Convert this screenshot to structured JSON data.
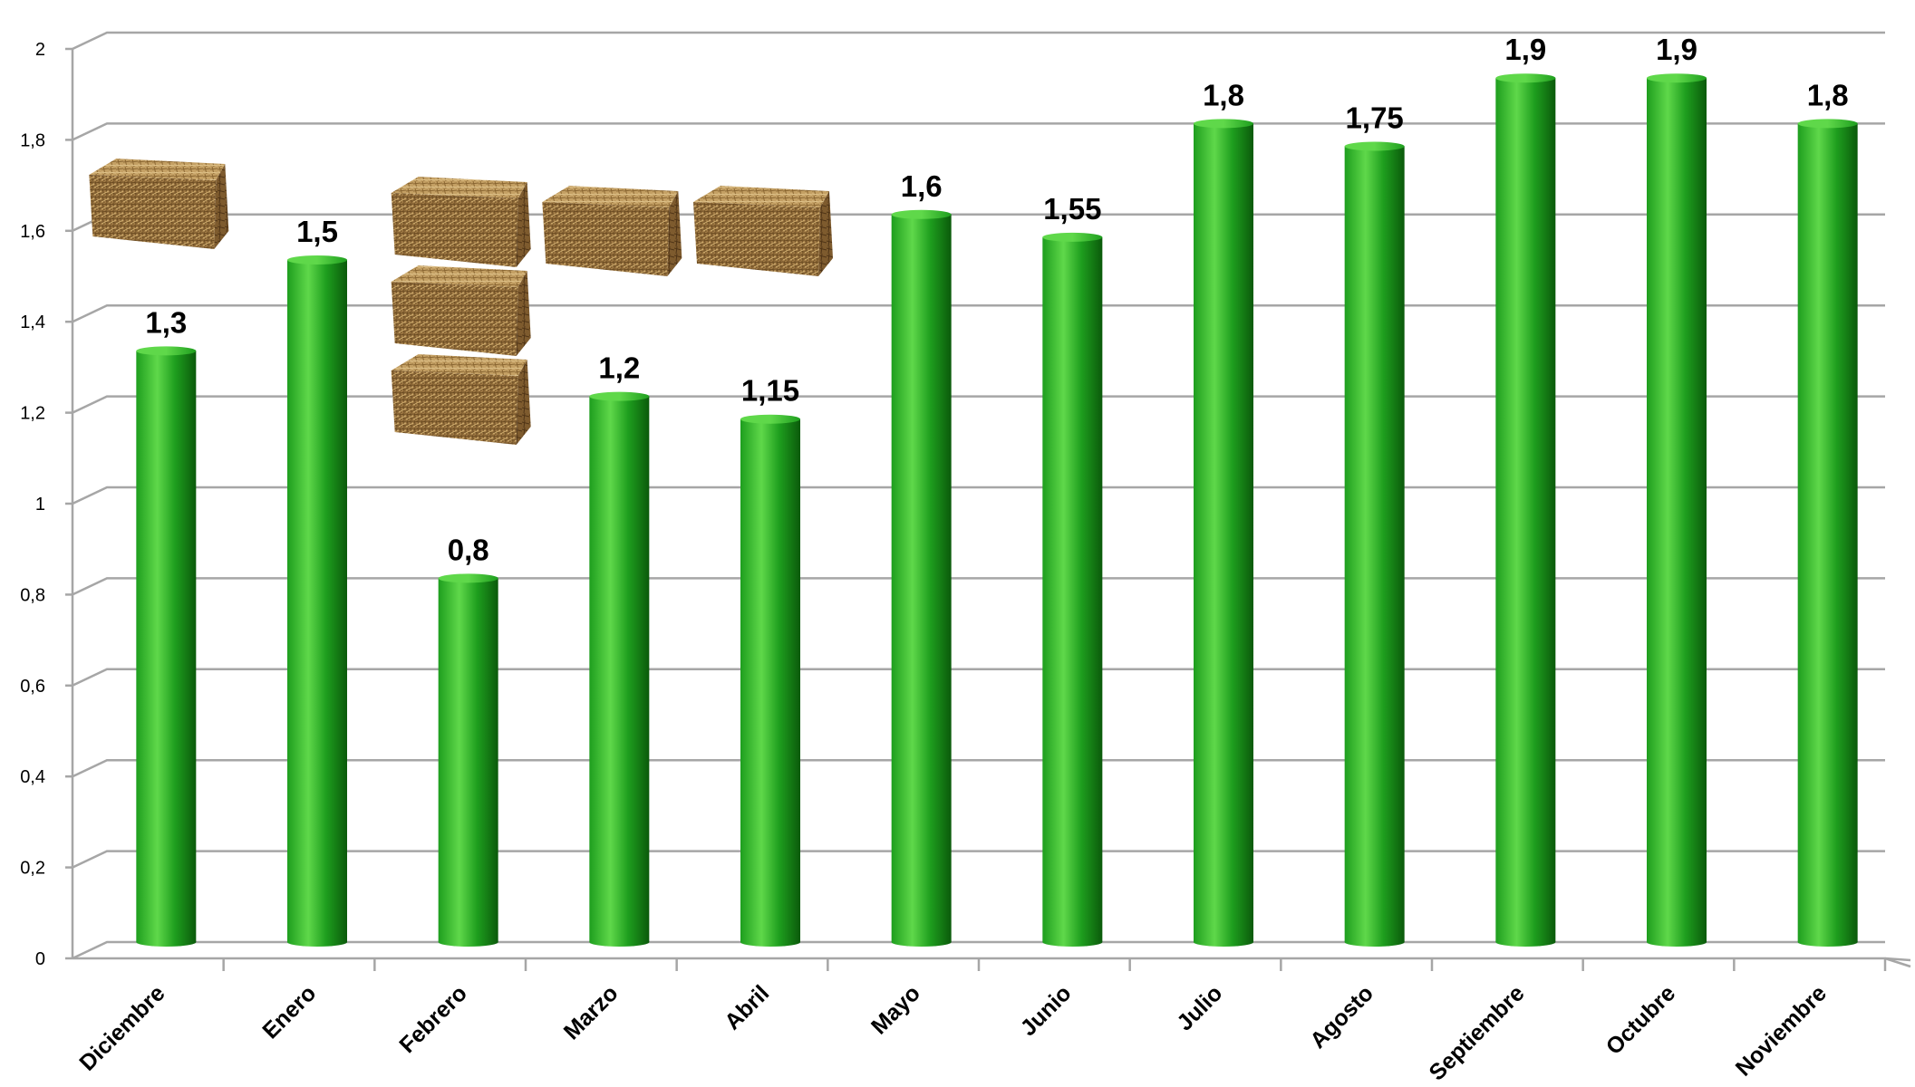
{
  "chart_data": {
    "type": "bar",
    "title": "",
    "xlabel": "",
    "ylabel": "",
    "categories": [
      "Diciembre",
      "Enero",
      "Febrero",
      "Marzo",
      "Abril",
      "Mayo",
      "Junio",
      "Julio",
      "Agosto",
      "Septiembre",
      "Octubre",
      "Noviembre"
    ],
    "values": [
      1.3,
      1.5,
      0.8,
      1.2,
      1.15,
      1.6,
      1.55,
      1.8,
      1.75,
      1.9,
      1.9,
      1.8
    ],
    "value_labels": [
      "1,3",
      "1,5",
      "0,8",
      "1,2",
      "1,15",
      "1,6",
      "1,55",
      "1,8",
      "1,75",
      "1,9",
      "1,9",
      "1,8"
    ],
    "ylim": [
      0,
      2
    ],
    "yticks": [
      0,
      0.2,
      0.4,
      0.6,
      0.8,
      1,
      1.2,
      1.4,
      1.6,
      1.8,
      2
    ],
    "ytick_labels": [
      "0",
      "0,2",
      "0,4",
      "0,6",
      "0,8",
      "1",
      "1,2",
      "1,4",
      "1,6",
      "1,8",
      "2"
    ],
    "grid": true,
    "legend": "none",
    "bar_color": "#1e9e1e",
    "bar_highlight": "#5fd84a",
    "bar_shadow": "#0b5a0b",
    "grid_color": "#a6a6a6",
    "decorations": [
      {
        "icon": "hay-bale-icon",
        "near": "Diciembre"
      },
      {
        "icon": "hay-bale-icon",
        "near": "Febrero"
      },
      {
        "icon": "hay-bale-icon",
        "near": "Febrero"
      },
      {
        "icon": "hay-bale-icon",
        "near": "Febrero"
      },
      {
        "icon": "hay-bale-icon",
        "near": "Marzo"
      },
      {
        "icon": "hay-bale-icon",
        "near": "Abril"
      }
    ]
  }
}
